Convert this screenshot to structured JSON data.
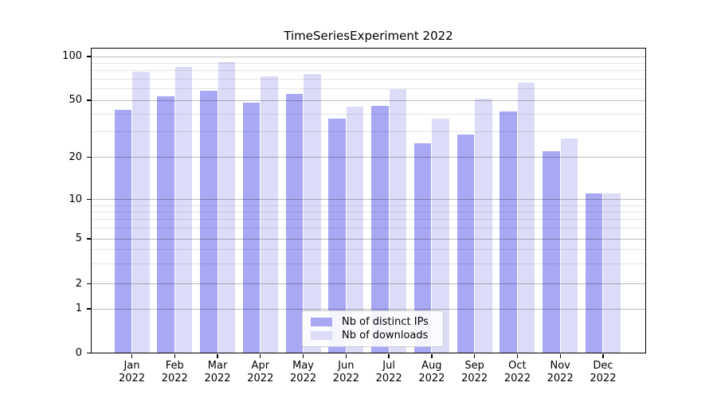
{
  "chart_data": {
    "type": "bar",
    "title": "TimeSeriesExperiment 2022",
    "months": [
      "Jan",
      "Feb",
      "Mar",
      "Apr",
      "May",
      "Jun",
      "Jul",
      "Aug",
      "Sep",
      "Oct",
      "Nov",
      "Dec"
    ],
    "year_label": "2022",
    "series": [
      {
        "name": "Nb of distinct IPs",
        "color": "#a8a8f5",
        "values": [
          43,
          53,
          58,
          48,
          55,
          37,
          46,
          25,
          29,
          42,
          22,
          11
        ]
      },
      {
        "name": "Nb of downloads",
        "color": "#dcdcf8",
        "values": [
          79,
          85,
          92,
          73,
          76,
          45,
          60,
          37,
          51,
          66,
          27,
          11
        ]
      }
    ],
    "yscale": "asinh",
    "ylim": [
      0,
      100
    ],
    "yticks": [
      0,
      1,
      2,
      5,
      10,
      20,
      50,
      100
    ],
    "minor_grid_values": [
      3,
      4,
      6,
      7,
      8,
      9,
      30,
      40,
      60,
      70,
      80,
      90
    ],
    "grid": true,
    "legend_position": "lower center",
    "xlabel": "",
    "ylabel": ""
  }
}
